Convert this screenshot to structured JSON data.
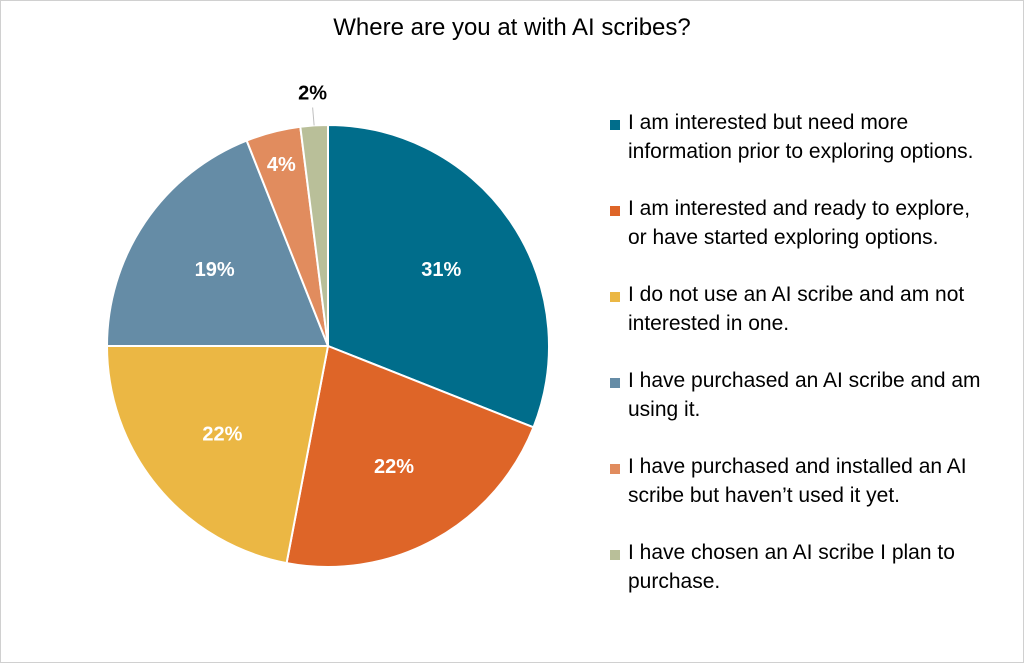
{
  "chart_data": {
    "type": "pie",
    "title": "Where are you at with AI scribes?",
    "legend_position": "right",
    "slices": [
      {
        "label": "I am interested but need more information prior to exploring options.",
        "value": 31,
        "data_label": "31%",
        "color": "#006d8b"
      },
      {
        "label": "I am interested and ready to explore, or have started exploring options.",
        "value": 22,
        "data_label": "22%",
        "color": "#de6528"
      },
      {
        "label": "I do not use an AI scribe and am not interested in one.",
        "value": 22,
        "data_label": "22%",
        "color": "#ebb744"
      },
      {
        "label": "I have purchased an AI scribe and am using it.",
        "value": 19,
        "data_label": "19%",
        "color": "#658ca6"
      },
      {
        "label": "I have purchased and installed an AI scribe but haven’t used it yet.",
        "value": 4,
        "data_label": "4%",
        "color": "#e18c5e"
      },
      {
        "label": "I have chosen an AI scribe I plan to purchase.",
        "value": 2,
        "data_label": "2%",
        "color": "#b9bf99"
      }
    ]
  },
  "legend": {
    "items": [
      {
        "label_line1": "I am interested but need more",
        "label_line2": "information prior to exploring options."
      },
      {
        "label_line1": "I am interested and ready to explore,",
        "label_line2": "or have started exploring options."
      },
      {
        "label_line1": "I do not use an AI scribe and am not",
        "label_line2": "interested in one."
      },
      {
        "label_line1": "I have purchased an AI scribe and am",
        "label_line2": "using it."
      },
      {
        "label_line1": "I have purchased and installed an AI",
        "label_line2": "scribe but haven’t used it yet."
      },
      {
        "label_line1": "I have chosen an AI scribe I plan to",
        "label_line2": "purchase."
      }
    ]
  }
}
